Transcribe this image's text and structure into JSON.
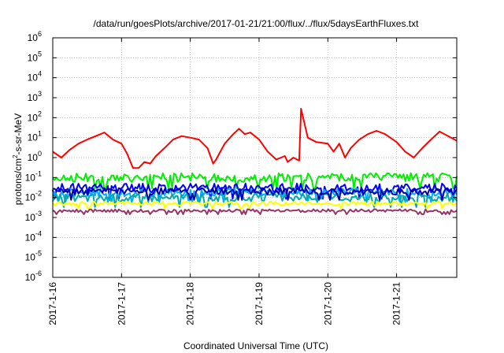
{
  "chart_data": {
    "type": "line",
    "title": "/data/run/goesPlots/archive/2017-01-21/21:00/flux/../flux/5daysEarthFluxes.txt",
    "xlabel": "Coordinated Universal Time (UTC)",
    "ylabel": {
      "base": "protons/cm",
      "sup": "2",
      "rest": "-s-sr-MeV"
    },
    "y_scale": "log",
    "ylim": [
      1e-06,
      1000000.0
    ],
    "y_ticks": [
      {
        "value": 1e-06,
        "base": "10",
        "exp": "-6"
      },
      {
        "value": 1e-05,
        "base": "10",
        "exp": "-5"
      },
      {
        "value": 0.0001,
        "base": "10",
        "exp": "-4"
      },
      {
        "value": 0.001,
        "base": "10",
        "exp": "-3"
      },
      {
        "value": 0.01,
        "base": "10",
        "exp": "-2"
      },
      {
        "value": 0.1,
        "base": "10",
        "exp": "-1"
      },
      {
        "value": 1,
        "base": "10",
        "exp": "0"
      },
      {
        "value": 10,
        "base": "10",
        "exp": "1"
      },
      {
        "value": 100,
        "base": "10",
        "exp": "2"
      },
      {
        "value": 1000,
        "base": "10",
        "exp": "3"
      },
      {
        "value": 10000,
        "base": "10",
        "exp": "4"
      },
      {
        "value": 100000,
        "base": "10",
        "exp": "5"
      },
      {
        "value": 1000000,
        "base": "10",
        "exp": "6"
      }
    ],
    "xlim": [
      "2017-01-16T00:00",
      "2017-01-21T21:00"
    ],
    "x_ticks": [
      "2017-1-16",
      "2017-1-17",
      "2017-1-18",
      "2017-1-19",
      "2017-1-20",
      "2017-1-21"
    ],
    "grid": true,
    "legend": "none",
    "series": [
      {
        "color": "#ff0000",
        "points": [
          [
            "2017-01-16T00:00",
            2
          ],
          [
            "2017-01-16T03:00",
            1
          ],
          [
            "2017-01-16T06:00",
            2.5
          ],
          [
            "2017-01-16T09:00",
            5
          ],
          [
            "2017-01-16T12:00",
            8
          ],
          [
            "2017-01-16T15:00",
            12
          ],
          [
            "2017-01-16T18:00",
            18
          ],
          [
            "2017-01-16T21:00",
            8
          ],
          [
            "2017-01-17T00:00",
            5
          ],
          [
            "2017-01-17T02:00",
            1.5
          ],
          [
            "2017-01-17T04:00",
            0.3
          ],
          [
            "2017-01-17T06:00",
            0.3
          ],
          [
            "2017-01-17T08:00",
            0.6
          ],
          [
            "2017-01-17T10:00",
            0.5
          ],
          [
            "2017-01-17T12:00",
            1.2
          ],
          [
            "2017-01-17T15:00",
            3
          ],
          [
            "2017-01-17T18:00",
            8
          ],
          [
            "2017-01-17T21:00",
            12
          ],
          [
            "2017-01-18T00:00",
            10
          ],
          [
            "2017-01-18T03:00",
            8
          ],
          [
            "2017-01-18T06:00",
            3
          ],
          [
            "2017-01-18T08:00",
            0.5
          ],
          [
            "2017-01-18T09:00",
            0.8
          ],
          [
            "2017-01-18T12:00",
            5
          ],
          [
            "2017-01-18T15:00",
            15
          ],
          [
            "2017-01-18T17:00",
            28
          ],
          [
            "2017-01-18T19:00",
            15
          ],
          [
            "2017-01-18T21:00",
            18
          ],
          [
            "2017-01-19T00:00",
            8
          ],
          [
            "2017-01-19T03:00",
            2
          ],
          [
            "2017-01-19T06:00",
            0.8
          ],
          [
            "2017-01-19T09:00",
            1.2
          ],
          [
            "2017-01-19T10:00",
            0.6
          ],
          [
            "2017-01-19T12:00",
            1
          ],
          [
            "2017-01-19T14:00",
            0.7
          ],
          [
            "2017-01-19T14:40",
            280
          ],
          [
            "2017-01-19T17:00",
            10
          ],
          [
            "2017-01-19T20:00",
            6
          ],
          [
            "2017-01-20T00:00",
            5
          ],
          [
            "2017-01-20T02:00",
            2
          ],
          [
            "2017-01-20T04:00",
            5
          ],
          [
            "2017-01-20T06:00",
            1
          ],
          [
            "2017-01-20T08:00",
            3
          ],
          [
            "2017-01-20T11:00",
            8
          ],
          [
            "2017-01-20T14:00",
            15
          ],
          [
            "2017-01-20T17:00",
            22
          ],
          [
            "2017-01-20T20:00",
            15
          ],
          [
            "2017-01-21T00:00",
            6
          ],
          [
            "2017-01-21T03:00",
            2
          ],
          [
            "2017-01-21T06:00",
            1
          ],
          [
            "2017-01-21T09:00",
            3
          ],
          [
            "2017-01-21T12:00",
            8
          ],
          [
            "2017-01-21T15:00",
            20
          ],
          [
            "2017-01-21T18:00",
            12
          ],
          [
            "2017-01-21T21:00",
            7
          ]
        ]
      },
      {
        "color": "#00ee00",
        "level": 0.1,
        "spread": 0.45
      },
      {
        "color": "#0000ff",
        "level": 0.03,
        "spread": 0.45
      },
      {
        "color": "#00aaff",
        "level": 0.018,
        "spread": 0.4
      },
      {
        "color": "#00aaaa",
        "level": 0.01,
        "spread": 0.4
      },
      {
        "color": "#0000aa",
        "level": 0.02,
        "spread": 0.35
      },
      {
        "color": "#ffff00",
        "level": 0.005,
        "spread": 0.2
      },
      {
        "color": "#993366",
        "level": 0.0022,
        "spread": 0.15
      }
    ]
  }
}
